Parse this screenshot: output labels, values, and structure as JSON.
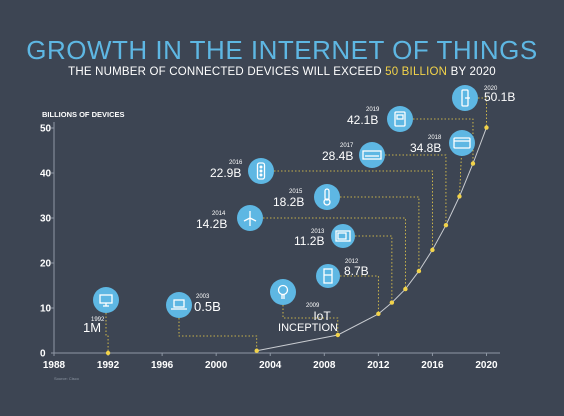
{
  "title": "GROWTH IN THE INTERNET OF THINGS",
  "subtitle": {
    "prefix": "THE NUMBER OF CONNECTED DEVICES WILL EXCEED ",
    "highlight": "50 BILLION",
    "suffix": " BY 2020"
  },
  "source": "Source: Cisco",
  "colors": {
    "background": "#3d4553",
    "title": "#5eb7e3",
    "highlight": "#f2d34a",
    "marker": "#f2d34a",
    "icon_circle": "#5eb7e3",
    "axis": "#8e97a4"
  },
  "chart_data": {
    "type": "line",
    "title": "GROWTH IN THE INTERNET OF THINGS",
    "ylabel": "BILLIONS OF DEVICES",
    "xlabel": "",
    "xlim": [
      1988,
      2021
    ],
    "ylim": [
      0,
      50
    ],
    "x_ticks": [
      "1988",
      "1992",
      "1996",
      "2000",
      "2004",
      "2008",
      "2012",
      "2016",
      "2020"
    ],
    "y_ticks": [
      "0",
      "10",
      "20",
      "30",
      "40",
      "50"
    ],
    "grid": false,
    "series": [
      {
        "values": [
          {
            "x": 1992,
            "y": 0.001
          },
          {
            "x": 2003,
            "y": 0.5
          },
          {
            "x": 2009,
            "y": 4.0
          },
          {
            "x": 2012,
            "y": 8.7
          },
          {
            "x": 2013,
            "y": 11.2
          },
          {
            "x": 2014,
            "y": 14.2
          },
          {
            "x": 2015,
            "y": 18.2
          },
          {
            "x": 2016,
            "y": 22.9
          },
          {
            "x": 2017,
            "y": 28.4
          },
          {
            "x": 2018,
            "y": 34.8
          },
          {
            "x": 2019,
            "y": 42.1
          },
          {
            "x": 2020,
            "y": 50.1
          }
        ]
      }
    ],
    "annotations": [
      {
        "x": 1992,
        "y": 0.001,
        "year": "1992",
        "label": "1M",
        "icon": "desktop-computer-icon"
      },
      {
        "x": 2003,
        "y": 0.5,
        "year": "2003",
        "label": "0.5B",
        "icon": "laptop-icon"
      },
      {
        "x": 2009,
        "y": 4.0,
        "year": "2009",
        "label": "IoT INCEPTION",
        "icon": "lightbulb-icon"
      },
      {
        "x": 2012,
        "y": 8.7,
        "year": "2012",
        "label": "8.7B",
        "icon": "refrigerator-icon"
      },
      {
        "x": 2013,
        "y": 11.2,
        "year": "2013",
        "label": "11.2B",
        "icon": "microwave-icon"
      },
      {
        "x": 2014,
        "y": 14.2,
        "year": "2014",
        "label": "14.2B",
        "icon": "wind-turbine-icon"
      },
      {
        "x": 2015,
        "y": 18.2,
        "year": "2015",
        "label": "18.2B",
        "icon": "thermometer-icon"
      },
      {
        "x": 2016,
        "y": 22.9,
        "year": "2016",
        "label": "22.9B",
        "icon": "traffic-light-icon"
      },
      {
        "x": 2017,
        "y": 28.4,
        "year": "2017",
        "label": "28.4B",
        "icon": "air-conditioner-icon"
      },
      {
        "x": 2018,
        "y": 34.8,
        "year": "2018",
        "label": "34.8B",
        "icon": "credit-card-icon"
      },
      {
        "x": 2019,
        "y": 42.1,
        "year": "2019",
        "label": "42.1B",
        "icon": "smart-meter-icon"
      },
      {
        "x": 2020,
        "y": 50.1,
        "year": "2020",
        "label": "50.1B",
        "icon": "door-lock-icon"
      }
    ]
  }
}
